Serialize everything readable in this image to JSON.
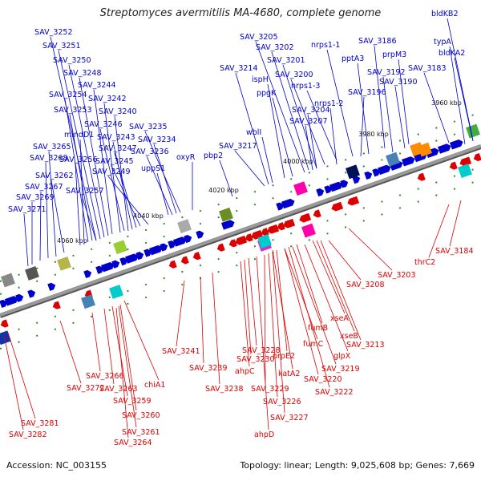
{
  "title": "Streptomyces avermitilis MA-4680, complete genome",
  "footer": {
    "accession": "Accession: NC_003155",
    "summary": "Topology: linear; Length: 9,025,608 bp; Genes: 7,669"
  },
  "colors": {
    "forward": "#0000cc",
    "reverse": "#dd0000",
    "backbone": "#999999"
  },
  "ticks": [
    "3960 kbp",
    "3980 kbp",
    "4000 kbp",
    "4020 kbp",
    "4040 kbp",
    "4060 kbp"
  ],
  "labels_forward": [
    "bldKB2",
    "typA",
    "bldKA2",
    "SAV_3205",
    "SAV_3202",
    "SAV_3201",
    "SAV_3200",
    "nrps1-3",
    "nrps1-1",
    "pptA3",
    "SAV_3186",
    "prpM3",
    "SAV_3192",
    "SAV_3190",
    "SAV_3183",
    "SAV_3196",
    "nrps1-2",
    "SAV_3204",
    "SAV_3207",
    "ppgK",
    "ispH",
    "SAV_3214",
    "wblI",
    "SAV_3217",
    "pbp2",
    "oxyR",
    "uppS1",
    "SAV_3252",
    "SAV_3251",
    "SAV_3250",
    "SAV_3248",
    "SAV_3244",
    "SAV_3254",
    "SAV_3242",
    "SAV_3253",
    "SAV_3240",
    "mindD1",
    "SAV_3246",
    "SAV_3235",
    "SAV_3243",
    "SAV_3234",
    "SAV_3247",
    "SAV_3236",
    "SAV_3265",
    "SAV_3245",
    "SAV_3268",
    "SAV_3256",
    "SAV_3249",
    "SAV_3262",
    "SAV_3257",
    "SAV_3267",
    "SAV_3269",
    "SAV_3271"
  ],
  "labels_reverse": [
    "SAV_3184",
    "thrC2",
    "SAV_3203",
    "SAV_3208",
    "xseA",
    "fumB",
    "xseB",
    "SAV_3213",
    "fumC",
    "glpX",
    "prpE2",
    "SAV_3219",
    "katA2",
    "SAV_3220",
    "SAV_3222",
    "SAV_3228",
    "SAV_3230",
    "ahpC",
    "SAV_3229",
    "SAV_3226",
    "SAV_3227",
    "ahpD",
    "SAV_3238",
    "SAV_3239",
    "SAV_3241",
    "chiA1",
    "SAV_3266",
    "SAV_3263",
    "SAV_3259",
    "SAV_3272",
    "SAV_3260",
    "SAV_3261",
    "SAV_3264",
    "SAV_3281",
    "SAV_3282"
  ]
}
